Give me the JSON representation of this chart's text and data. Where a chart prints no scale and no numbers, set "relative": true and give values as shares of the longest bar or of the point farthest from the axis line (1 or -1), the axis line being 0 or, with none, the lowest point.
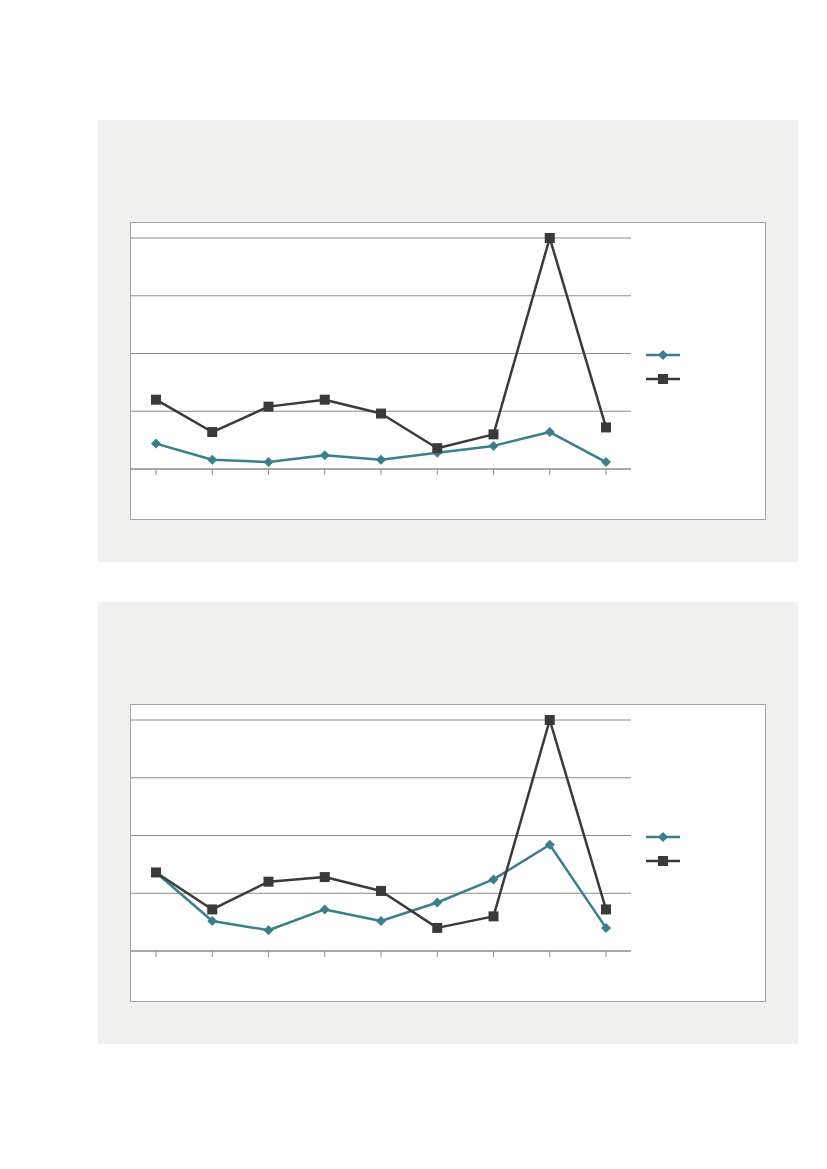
{
  "chart_data": [
    {
      "type": "line",
      "relative": true,
      "categories": [
        null,
        null,
        null,
        null,
        null,
        null,
        null,
        null,
        null
      ],
      "grid": "y",
      "series": [
        {
          "color": "#3a7f8c",
          "marker": "diamond",
          "values": [
            0.11,
            0.04,
            0.03,
            0.06,
            0.04,
            0.07,
            0.1,
            0.16,
            0.03
          ]
        },
        {
          "color": "#3a3a3a",
          "marker": "square",
          "values": [
            0.3,
            0.16,
            0.27,
            0.3,
            0.24,
            0.09,
            0.15,
            1,
            0.18
          ]
        }
      ]
    },
    {
      "type": "line",
      "relative": true,
      "categories": [
        null,
        null,
        null,
        null,
        null,
        null,
        null,
        null,
        null
      ],
      "grid": "y",
      "series": [
        {
          "color": "#3a7f8c",
          "marker": "diamond",
          "values": [
            0.34,
            0.13,
            0.09,
            0.18,
            0.13,
            0.21,
            0.31,
            0.46,
            0.1
          ]
        },
        {
          "color": "#3a3a3a",
          "marker": "square",
          "values": [
            0.34,
            0.18,
            0.3,
            0.32,
            0.26,
            0.1,
            0.15,
            1,
            0.18
          ]
        }
      ]
    }
  ]
}
